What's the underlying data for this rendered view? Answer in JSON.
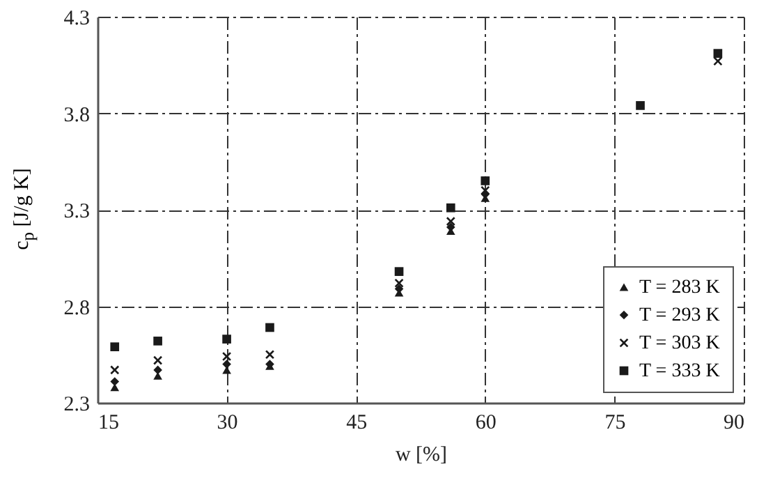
{
  "chart_data": {
    "type": "scatter",
    "xlabel": "w [%]",
    "ylabel": "c$_{p}$ [J/g K]",
    "x": [
      17,
      22,
      30,
      35,
      50,
      56,
      60,
      78,
      87
    ],
    "series": [
      {
        "name": "T = 283 K",
        "color": "#1a1a1a",
        "marker": "triangle",
        "values": [
          2.38,
          2.44,
          2.47,
          2.49,
          2.87,
          3.19,
          3.36,
          null,
          null
        ]
      },
      {
        "name": "T = 293 K",
        "color": "#1a1a1a",
        "marker": "diamond",
        "values": [
          2.41,
          2.47,
          2.5,
          2.5,
          2.89,
          3.21,
          3.38,
          null,
          null
        ]
      },
      {
        "name": "T = 303 K",
        "color": "#1a1a1a",
        "marker": "cross",
        "values": [
          2.47,
          2.52,
          2.54,
          2.55,
          2.92,
          3.24,
          3.4,
          null,
          4.07
        ]
      },
      {
        "name": "T = 333 K",
        "color": "#1a1a1a",
        "marker": "square",
        "values": [
          2.59,
          2.62,
          2.63,
          2.69,
          2.98,
          3.31,
          3.45,
          3.84,
          4.11
        ]
      }
    ],
    "xlim": [
      15,
      90
    ],
    "xticks": [
      15,
      30,
      45,
      60,
      75,
      90
    ],
    "ylim": [
      2.3,
      4.3
    ],
    "yticks": [
      2.3,
      2.8,
      3.3,
      3.8,
      4.3
    ],
    "grid": true,
    "legend": "bottom right"
  }
}
